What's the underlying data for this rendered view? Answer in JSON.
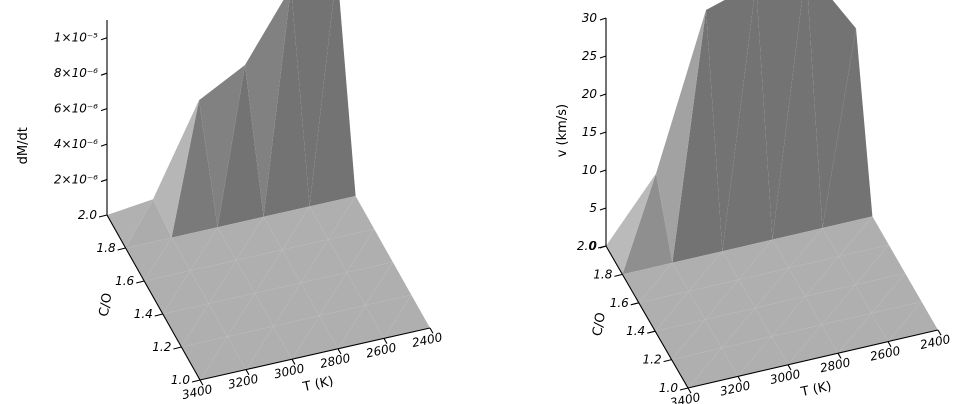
{
  "chart_data": [
    {
      "type": "surface",
      "zlabel": "dM/dt",
      "xlabel": "T (K)",
      "ylabel": "C/O",
      "x_ticks": [
        "3400",
        "3200",
        "3000",
        "2800",
        "2600",
        "2400"
      ],
      "y_ticks": [
        "1.0",
        "1.2",
        "1.4",
        "1.6",
        "1.8",
        "2.0"
      ],
      "z_ticks": [
        "2×10⁻⁶",
        "4×10⁻⁶",
        "6×10⁻⁶",
        "8×10⁻⁶",
        "1×10⁻⁵"
      ],
      "x": [
        3400,
        3200,
        3000,
        2800,
        2600,
        2400
      ],
      "y": [
        1.0,
        1.2,
        1.4,
        1.6,
        1.8,
        2.0
      ],
      "zlim": [
        0,
        1.1e-05
      ],
      "z_rows": [
        [
          0,
          0,
          0,
          0,
          0,
          0
        ],
        [
          0,
          0,
          0,
          0,
          0,
          0
        ],
        [
          0,
          0,
          0,
          0,
          0,
          0
        ],
        [
          0,
          0,
          0,
          0,
          0,
          0
        ],
        [
          0,
          0,
          0,
          0,
          0,
          0
        ],
        [
          0,
          3e-07,
          5.3e-06,
          6.7e-06,
          1.05e-05,
          1.1e-05
        ]
      ]
    },
    {
      "type": "surface",
      "zlabel": "v (km/s)",
      "xlabel": "T (K)",
      "ylabel": "C/O",
      "x_ticks": [
        "3400",
        "3200",
        "3000",
        "2800",
        "2600",
        "2400"
      ],
      "y_ticks": [
        "1.0",
        "1.2",
        "1.4",
        "1.6",
        "1.8",
        "2.0"
      ],
      "z_ticks": [
        "0",
        "5",
        "10",
        "15",
        "20",
        "25",
        "30"
      ],
      "x": [
        3400,
        3200,
        3000,
        2800,
        2600,
        2400
      ],
      "y": [
        1.0,
        1.2,
        1.4,
        1.6,
        1.8,
        2.0
      ],
      "zlim": [
        0,
        30
      ],
      "z_rows": [
        [
          0,
          0,
          0,
          0,
          0,
          0
        ],
        [
          0,
          0,
          0,
          0,
          0,
          0
        ],
        [
          0,
          0,
          0,
          0,
          0,
          0
        ],
        [
          0,
          0,
          0,
          0,
          0,
          0
        ],
        [
          0,
          0,
          0,
          0,
          0,
          0
        ],
        [
          0,
          8,
          28,
          30,
          30.5,
          21
        ]
      ]
    }
  ]
}
